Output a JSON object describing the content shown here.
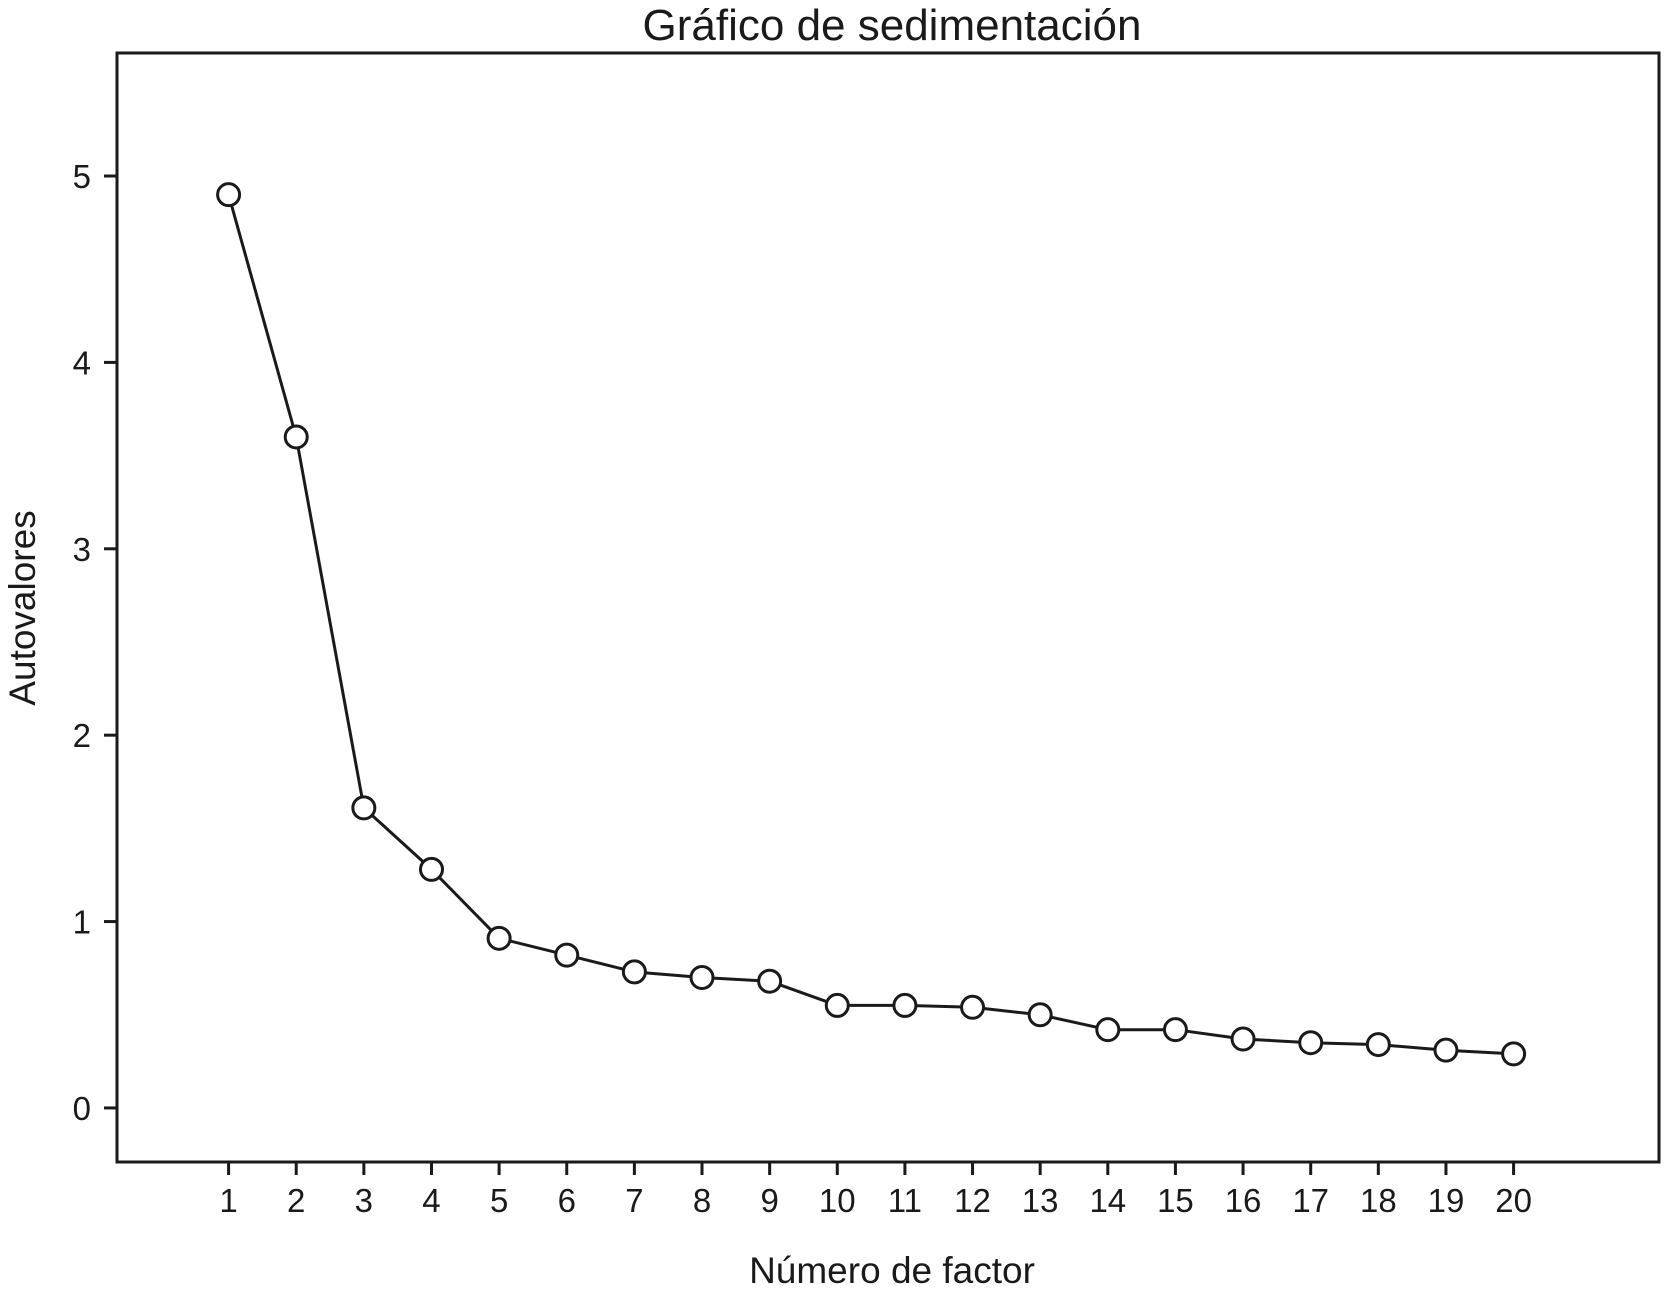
{
  "chart_data": {
    "type": "line",
    "title": "Gráfico de sedimentación",
    "xlabel": "Número de factor",
    "ylabel": "Autovalores",
    "x": [
      1,
      2,
      3,
      4,
      5,
      6,
      7,
      8,
      9,
      10,
      11,
      12,
      13,
      14,
      15,
      16,
      17,
      18,
      19,
      20
    ],
    "x_tick_labels": [
      "1",
      "2",
      "3",
      "4",
      "5",
      "6",
      "7",
      "8",
      "9",
      "10",
      "11",
      "12",
      "13",
      "14",
      "15",
      "16",
      "17",
      "18",
      "19",
      "20"
    ],
    "series": [
      {
        "values": [
          4.9,
          3.6,
          1.61,
          1.28,
          0.91,
          0.82,
          0.73,
          0.7,
          0.68,
          0.55,
          0.55,
          0.54,
          0.5,
          0.42,
          0.42,
          0.37,
          0.35,
          0.34,
          0.31,
          0.29
        ],
        "marker": "open-circle",
        "color": "#1a1a1a"
      }
    ],
    "y_ticks": [
      0,
      1,
      2,
      3,
      4,
      5
    ],
    "y_tick_labels": [
      "0",
      "1",
      "2",
      "3",
      "4",
      "5"
    ],
    "xlim": [
      -0.65,
      22.15
    ],
    "ylim": [
      -0.29,
      5.66
    ],
    "grid": false,
    "legend": "none"
  }
}
